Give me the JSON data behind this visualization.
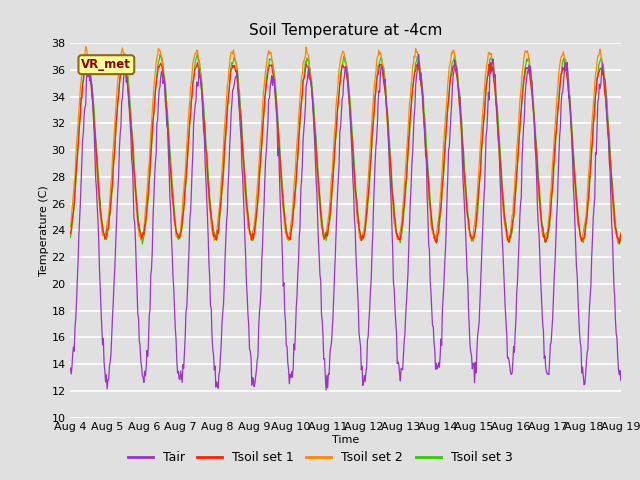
{
  "title": "Soil Temperature at -4cm",
  "xlabel": "Time",
  "ylabel": "Temperature (C)",
  "ylim": [
    10,
    38
  ],
  "colors": {
    "Tair": "#9933CC",
    "Tsoil_set1": "#FF2200",
    "Tsoil_set2": "#FF8800",
    "Tsoil_set3": "#33CC00"
  },
  "legend_labels": [
    "Tair",
    "Tsoil set 1",
    "Tsoil set 2",
    "Tsoil set 3"
  ],
  "annotation_text": "VR_met",
  "background_color": "#E0E0E0",
  "title_fontsize": 11,
  "axis_fontsize": 8,
  "legend_fontsize": 9,
  "grid_color": "#FFFFFF",
  "grid_linewidth": 1.2,
  "xtick_labels": [
    "Aug 4",
    "Aug 5",
    "Aug 6",
    "Aug 7",
    "Aug 8",
    "Aug 9",
    "Aug 10",
    "Aug 11",
    "Aug 12",
    "Aug 13",
    "Aug 14",
    "Aug 15",
    "Aug 16",
    "Aug 17",
    "Aug 18",
    "Aug 19"
  ]
}
